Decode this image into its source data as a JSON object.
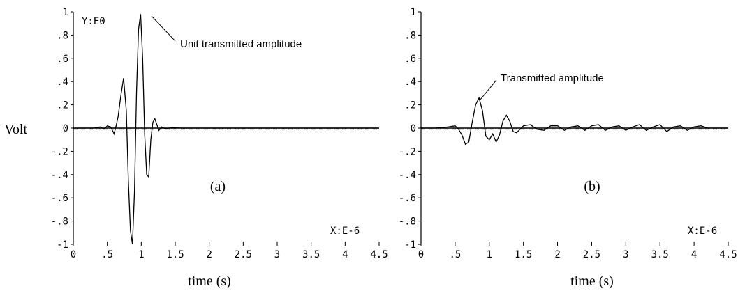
{
  "shared": {
    "ylabel": "Volt"
  },
  "chart_data": [
    {
      "type": "line",
      "panel_label": "(a)",
      "xlabel": "time (s)",
      "y_scale_note": "Y:E0",
      "x_scale_note": "X:E-6",
      "annotation": "Unit transmitted amplitude",
      "xlim": [
        0,
        4.5
      ],
      "ylim": [
        -1,
        1
      ],
      "x_ticks": [
        "0",
        ".5",
        "1",
        "1.5",
        "2",
        "2.5",
        "3",
        "3.5",
        "4",
        "4.5"
      ],
      "y_ticks": [
        "1",
        ".8",
        ".6",
        ".4",
        ".2",
        "0",
        "-.2",
        "-.4",
        "-.6",
        "-.8",
        "-1"
      ],
      "series": [
        {
          "x": [
            0,
            0.3,
            0.4,
            0.45,
            0.5,
            0.55,
            0.6,
            0.63,
            0.66,
            0.7,
            0.74,
            0.78,
            0.81,
            0.84,
            0.87,
            0.9,
            0.93,
            0.96,
            0.99,
            1.02,
            1.05,
            1.08,
            1.11,
            1.14,
            1.17,
            1.2,
            1.23,
            1.26,
            1.3,
            1.35,
            1.45,
            1.6,
            4.5
          ],
          "y": [
            0,
            0,
            0.01,
            -0.01,
            0.02,
            0.01,
            -0.05,
            0.02,
            0.1,
            0.28,
            0.43,
            0.15,
            -0.45,
            -0.88,
            -1.0,
            -0.55,
            0.3,
            0.85,
            0.98,
            0.6,
            -0.05,
            -0.4,
            -0.42,
            -0.1,
            0.05,
            0.08,
            0.03,
            -0.02,
            0.01,
            -0.005,
            0.003,
            0,
            0
          ]
        }
      ]
    },
    {
      "type": "line",
      "panel_label": "(b)",
      "xlabel": "time (s)",
      "x_scale_note": "X:E-6",
      "annotation": "Transmitted amplitude",
      "xlim": [
        0,
        4.5
      ],
      "ylim": [
        -1,
        1
      ],
      "x_ticks": [
        "0",
        ".5",
        "1",
        "1.5",
        "2",
        "2.5",
        "3",
        "3.5",
        "4",
        "4.5"
      ],
      "y_ticks": [
        "1",
        ".8",
        ".6",
        ".4",
        ".2",
        "0",
        "-.2",
        "-.4",
        "-.6",
        "-.8",
        "-1"
      ],
      "series": [
        {
          "x": [
            0,
            0.2,
            0.4,
            0.5,
            0.55,
            0.6,
            0.65,
            0.7,
            0.75,
            0.8,
            0.85,
            0.9,
            0.95,
            1.0,
            1.05,
            1.1,
            1.15,
            1.2,
            1.25,
            1.3,
            1.35,
            1.4,
            1.5,
            1.6,
            1.7,
            1.8,
            1.9,
            2.0,
            2.1,
            2.2,
            2.3,
            2.4,
            2.5,
            2.6,
            2.7,
            2.8,
            2.9,
            3.0,
            3.1,
            3.2,
            3.3,
            3.4,
            3.5,
            3.6,
            3.7,
            3.8,
            3.9,
            4.0,
            4.1,
            4.2,
            4.5
          ],
          "y": [
            0,
            0,
            0.01,
            0.02,
            -0.01,
            -0.06,
            -0.14,
            -0.12,
            0.05,
            0.2,
            0.26,
            0.15,
            -0.07,
            -0.1,
            -0.05,
            -0.12,
            -0.06,
            0.06,
            0.11,
            0.06,
            -0.03,
            -0.04,
            0.02,
            0.03,
            -0.01,
            -0.02,
            0.02,
            0.02,
            -0.02,
            0.01,
            0.02,
            -0.02,
            0.02,
            0.03,
            -0.02,
            0.01,
            0.02,
            -0.02,
            0.01,
            0.03,
            -0.02,
            0.01,
            0.03,
            -0.03,
            0.01,
            0.02,
            -0.02,
            0.01,
            0.02,
            0.0,
            0.0
          ]
        }
      ]
    }
  ]
}
